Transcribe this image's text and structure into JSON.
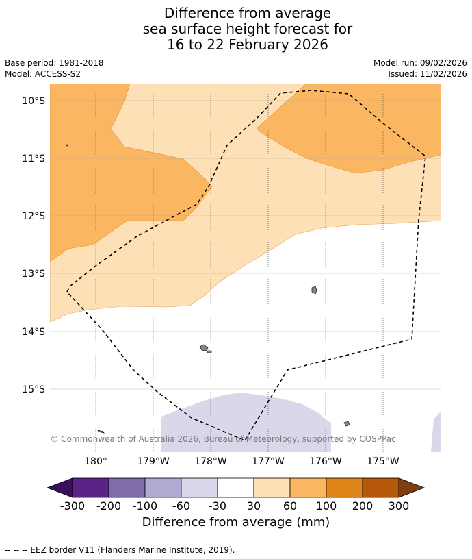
{
  "title": {
    "line1": "Difference from average",
    "line2": "sea surface height forecast for",
    "line3": "16 to 22 February 2026"
  },
  "meta": {
    "base_period": "Base period: 1981-2018",
    "model": "Model: ACCESS-S2",
    "model_run": "Model run: 09/02/2026",
    "issued": "Issued: 11/02/2026"
  },
  "map": {
    "lat_labels": [
      "10°S",
      "11°S",
      "12°S",
      "13°S",
      "14°S",
      "15°S"
    ],
    "lon_labels": [
      "180°",
      "179°W",
      "178°W",
      "177°W",
      "176°W",
      "175°W"
    ],
    "copyright": "© Commonwealth of Australia 2026, Bureau of Meteorology, supported by COSPPac"
  },
  "colorbar": {
    "tick_labels": [
      "-300",
      "-200",
      "-100",
      "-60",
      "-30",
      "30",
      "60",
      "100",
      "200",
      "300"
    ],
    "colors": {
      "under": "#3a0f5c",
      "bins": [
        "#5b2387",
        "#7f6dab",
        "#b0a9d1",
        "#d8d8ea",
        "#ffffff",
        "#fde0b6",
        "#fbb662",
        "#e0851a",
        "#b5580a"
      ],
      "over": "#7d3f10"
    },
    "label": "Difference from average (mm)"
  },
  "footer": {
    "eez_note": "--  --  -- EEZ border V11 (Flanders Marine Institute, 2019)."
  }
}
